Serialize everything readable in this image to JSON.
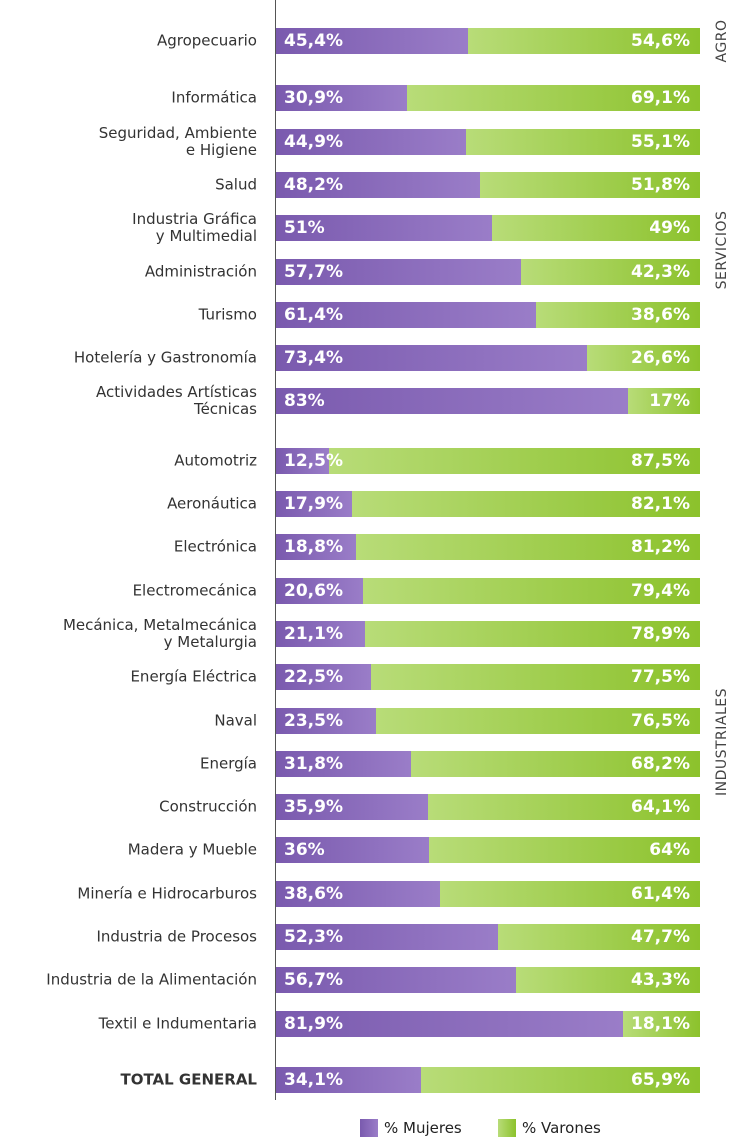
{
  "chart_data": {
    "type": "stacked_bar_horizontal",
    "categories": [
      "Agropecuario",
      "Informática",
      "Seguridad, Ambiente\ne Higiene",
      "Salud",
      "Industria Gráfica\ny Multimedial",
      "Administración",
      "Turismo",
      "Hotelería y Gastronomía",
      "Actividades Artísticas\nTécnicas",
      "Automotriz",
      "Aeronáutica",
      "Electrónica",
      "Electromecánica",
      "Mecánica, Metalmecánica\ny Metalurgia",
      "Energía Eléctrica",
      "Naval",
      "Energía",
      "Construcción",
      "Madera y Mueble",
      "Minería e Hidrocarburos",
      "Industria de Procesos",
      "Industria de la Alimentación",
      "Textil e Indumentaria",
      "TOTAL GENERAL"
    ],
    "series": [
      {
        "name": "% Mujeres",
        "color": "#8c6cbc",
        "values": [
          45.4,
          30.9,
          44.9,
          48.2,
          51,
          57.7,
          61.4,
          73.4,
          83,
          12.5,
          17.9,
          18.8,
          20.6,
          21.1,
          22.5,
          23.5,
          31.8,
          35.9,
          36,
          38.6,
          52.3,
          56.7,
          81.9,
          34.1
        ],
        "value_labels": [
          "45,4%",
          "30,9%",
          "44,9%",
          "48,2%",
          "51%",
          "57,7%",
          "61,4%",
          "73,4%",
          "83%",
          "12,5%",
          "17,9%",
          "18,8%",
          "20,6%",
          "21,1%",
          "22,5%",
          "23,5%",
          "31,8%",
          "35,9%",
          "36%",
          "38,6%",
          "52,3%",
          "56,7%",
          "81,9%",
          "34,1%"
        ]
      },
      {
        "name": "% Varones",
        "color": "#9ccc3c",
        "values": [
          54.6,
          69.1,
          55.1,
          51.8,
          49,
          42.3,
          38.6,
          26.6,
          17,
          87.5,
          82.1,
          81.2,
          79.4,
          78.9,
          77.5,
          76.5,
          68.2,
          64.1,
          64,
          61.4,
          47.7,
          43.3,
          18.1,
          65.9
        ],
        "value_labels": [
          "54,6%",
          "69,1%",
          "55,1%",
          "51,8%",
          "49%",
          "42,3%",
          "38,6%",
          "26,6%",
          "17%",
          "87,5%",
          "82,1%",
          "81,2%",
          "79,4%",
          "78,9%",
          "77,5%",
          "76,5%",
          "68,2%",
          "64,1%",
          "64%",
          "61,4%",
          "47,7%",
          "43,3%",
          "18,1%",
          "65,9%"
        ]
      }
    ],
    "xlim": [
      0,
      100
    ],
    "annotations": [
      "AGRO",
      "SERVICIOS",
      "INDUSTRIALES"
    ]
  }
}
